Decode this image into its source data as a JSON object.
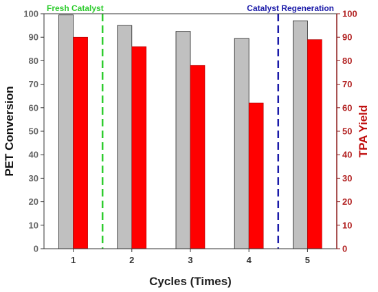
{
  "chart_data": {
    "type": "bar",
    "categories": [
      "1",
      "2",
      "3",
      "4",
      "5"
    ],
    "series": [
      {
        "name": "",
        "axis": "left",
        "color": "#c0c0c0",
        "values": [
          99.5,
          95,
          92.5,
          89.5,
          97
        ]
      },
      {
        "name": "",
        "axis": "right",
        "color": "#ff0000",
        "values": [
          90,
          86,
          78,
          62,
          89
        ]
      }
    ],
    "xlabel": "Cycles (Times)",
    "ylabel": "PET Conversion",
    "y2label": "TPA Yield",
    "ylim": [
      0,
      100
    ],
    "y2lim": [
      0,
      100
    ],
    "yticks": [
      "0",
      "10",
      "20",
      "30",
      "40",
      "50",
      "60",
      "70",
      "80",
      "90",
      "100"
    ],
    "y2ticks": [
      "0",
      "10",
      "20",
      "30",
      "40",
      "50",
      "60",
      "70",
      "80",
      "90",
      "100"
    ],
    "grid": false,
    "annotations": [
      {
        "text": "Fresh Catalyst",
        "x": 1.5,
        "color": "#2ecc2e",
        "line": "dashed"
      },
      {
        "text": "Catalyst Regeneration",
        "x": 4.5,
        "color": "#1a1aa8",
        "line": "dashed"
      }
    ],
    "colors": {
      "left_axis": "#333333",
      "right_axis": "#c01010"
    }
  }
}
